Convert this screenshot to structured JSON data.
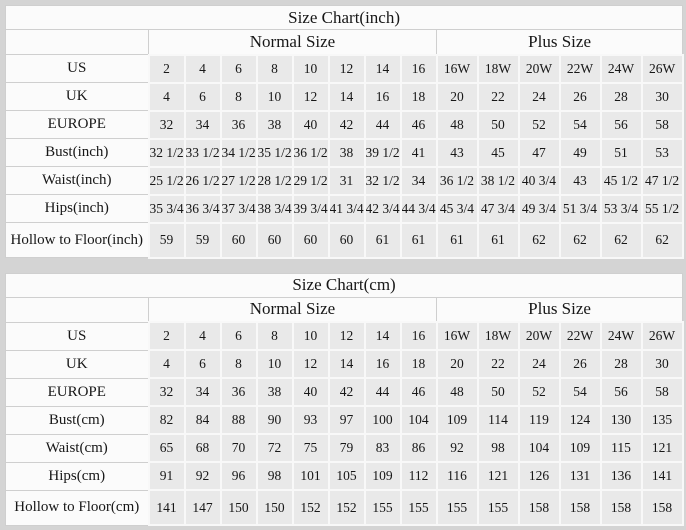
{
  "page": {
    "background_color": "#d4d4d4",
    "header_cell_color": "#fbfbfb",
    "data_cell_color": "#e9e9e9",
    "text_color": "#171717"
  },
  "chart_data": [
    {
      "type": "table",
      "title": "Size Chart(inch)",
      "column_groups": [
        {
          "label": "Normal Size",
          "span": 8
        },
        {
          "label": "Plus Size",
          "span": 6
        }
      ],
      "rows": [
        {
          "label": "US",
          "values": [
            "2",
            "4",
            "6",
            "8",
            "10",
            "12",
            "14",
            "16",
            "16W",
            "18W",
            "20W",
            "22W",
            "24W",
            "26W"
          ]
        },
        {
          "label": "UK",
          "values": [
            "4",
            "6",
            "8",
            "10",
            "12",
            "14",
            "16",
            "18",
            "20",
            "22",
            "24",
            "26",
            "28",
            "30"
          ]
        },
        {
          "label": "EUROPE",
          "values": [
            "32",
            "34",
            "36",
            "38",
            "40",
            "42",
            "44",
            "46",
            "48",
            "50",
            "52",
            "54",
            "56",
            "58"
          ]
        },
        {
          "label": "Bust(inch)",
          "values": [
            "32 1/2",
            "33 1/2",
            "34 1/2",
            "35 1/2",
            "36 1/2",
            "38",
            "39 1/2",
            "41",
            "43",
            "45",
            "47",
            "49",
            "51",
            "53"
          ]
        },
        {
          "label": "Waist(inch)",
          "values": [
            "25 1/2",
            "26 1/2",
            "27 1/2",
            "28 1/2",
            "29 1/2",
            "31",
            "32 1/2",
            "34",
            "36 1/2",
            "38 1/2",
            "40 3/4",
            "43",
            "45 1/2",
            "47 1/2"
          ]
        },
        {
          "label": "Hips(inch)",
          "values": [
            "35 3/4",
            "36 3/4",
            "37 3/4",
            "38 3/4",
            "39 3/4",
            "41 3/4",
            "42 3/4",
            "44 3/4",
            "45 3/4",
            "47 3/4",
            "49 3/4",
            "51 3/4",
            "53 3/4",
            "55 1/2"
          ]
        },
        {
          "label": "Hollow to Floor(inch)",
          "values": [
            "59",
            "59",
            "60",
            "60",
            "60",
            "60",
            "61",
            "61",
            "61",
            "61",
            "62",
            "62",
            "62",
            "62"
          ]
        }
      ]
    },
    {
      "type": "table",
      "title": "Size Chart(cm)",
      "column_groups": [
        {
          "label": "Normal Size",
          "span": 8
        },
        {
          "label": "Plus Size",
          "span": 6
        }
      ],
      "rows": [
        {
          "label": "US",
          "values": [
            "2",
            "4",
            "6",
            "8",
            "10",
            "12",
            "14",
            "16",
            "16W",
            "18W",
            "20W",
            "22W",
            "24W",
            "26W"
          ]
        },
        {
          "label": "UK",
          "values": [
            "4",
            "6",
            "8",
            "10",
            "12",
            "14",
            "16",
            "18",
            "20",
            "22",
            "24",
            "26",
            "28",
            "30"
          ]
        },
        {
          "label": "EUROPE",
          "values": [
            "32",
            "34",
            "36",
            "38",
            "40",
            "42",
            "44",
            "46",
            "48",
            "50",
            "52",
            "54",
            "56",
            "58"
          ]
        },
        {
          "label": "Bust(cm)",
          "values": [
            "82",
            "84",
            "88",
            "90",
            "93",
            "97",
            "100",
            "104",
            "109",
            "114",
            "119",
            "124",
            "130",
            "135"
          ]
        },
        {
          "label": "Waist(cm)",
          "values": [
            "65",
            "68",
            "70",
            "72",
            "75",
            "79",
            "83",
            "86",
            "92",
            "98",
            "104",
            "109",
            "115",
            "121"
          ]
        },
        {
          "label": "Hips(cm)",
          "values": [
            "91",
            "92",
            "96",
            "98",
            "101",
            "105",
            "109",
            "112",
            "116",
            "121",
            "126",
            "131",
            "136",
            "141"
          ]
        },
        {
          "label": "Hollow to Floor(cm)",
          "values": [
            "141",
            "147",
            "150",
            "150",
            "152",
            "152",
            "155",
            "155",
            "155",
            "155",
            "158",
            "158",
            "158",
            "158"
          ]
        }
      ]
    }
  ]
}
